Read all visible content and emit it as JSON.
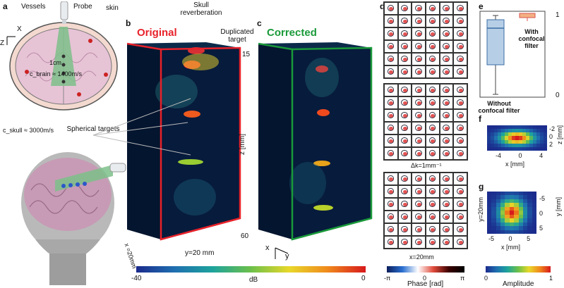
{
  "panels": {
    "a": "a",
    "b": "b",
    "c": "c",
    "d": "d",
    "e": "e",
    "f": "f",
    "g": "g"
  },
  "panel_a": {
    "vessels": "Vessels",
    "probe": "Probe",
    "skin": "skin",
    "axis_x": "X",
    "axis_z": "Z",
    "scale": "1cm",
    "c_brain": "c_brain ≈ 1400m/s",
    "c_skull": "c_skull ≈ 3000m/s",
    "spherical_targets": "Spherical targets"
  },
  "panel_b": {
    "title": "Original",
    "skull_reverberation": "Skull reverberation",
    "duplicated_target": "Duplicated target",
    "z_top": "15",
    "z_bottom": "60",
    "z_label": "z [mm]",
    "x_label": "x =20mm",
    "y_label": "y=20 mm"
  },
  "panel_c": {
    "title": "Corrected",
    "axis_x": "x",
    "axis_y": "y"
  },
  "panel_d": {
    "dk": "Δk=1mm⁻¹",
    "x_label": "x=20mm",
    "y_label": "y=20mm"
  },
  "panel_e": {
    "without": "Without confocal filter",
    "with": "With confocal filter",
    "tick_1": "1",
    "tick_0": "0"
  },
  "panel_f": {
    "x_ticks": [
      "-4",
      "0",
      "4"
    ],
    "x_label": "x [mm]",
    "z_ticks": [
      "-2",
      "0",
      "2"
    ],
    "z_label": "z [mm]"
  },
  "panel_g": {
    "x_ticks": [
      "-5",
      "0",
      "5"
    ],
    "x_label": "x [mm]",
    "y_ticks": [
      "-5",
      "0",
      "5"
    ],
    "y_label": "y [mm]"
  },
  "colorbars": {
    "db_min": "-40",
    "db_max": "0",
    "db_label": "dB",
    "phase_min": "-π",
    "phase_mid": "0",
    "phase_max": "π",
    "phase_label": "Phase [rad]",
    "amp_min": "0",
    "amp_max": "1",
    "amp_label": "Amplitude"
  },
  "colors": {
    "original": "#e8222a",
    "corrected": "#1a9a3a",
    "background": "#03122a"
  }
}
